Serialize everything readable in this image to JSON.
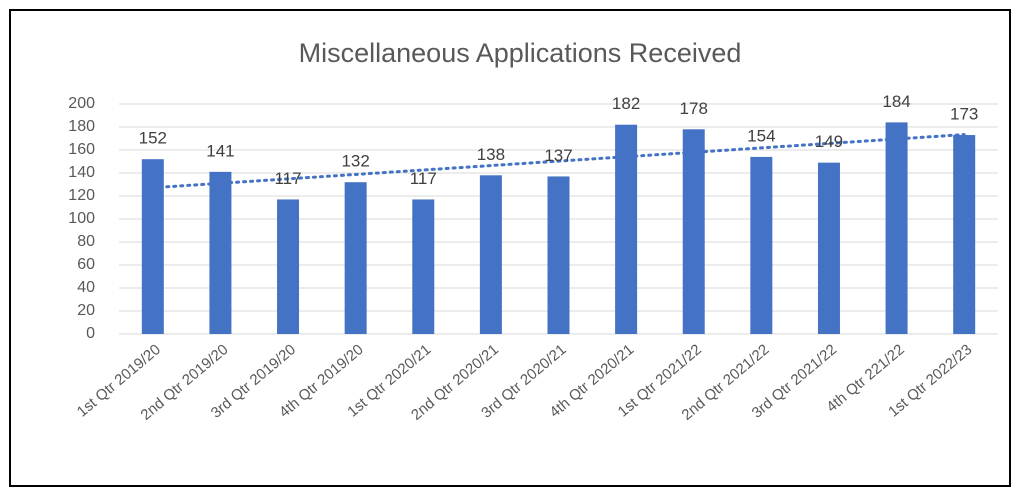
{
  "chart_data": {
    "type": "bar",
    "title": "Miscellaneous Applications Received",
    "categories": [
      "1st Qtr 2019/20",
      "2nd Qtr 2019/20",
      "3rd Qtr 2019/20",
      "4th Qtr 2019/20",
      "1st Qtr 2020/21",
      "2nd Qtr 2020/21",
      "3rd Qtr 2020/21",
      "4th Qtr 2020/21",
      "1st Qtr 2021/22",
      "2nd Qtr 2021/22",
      "3rd Qtr 2021/22",
      "4th Qtr 221/22",
      "1st Qtr 2022/23"
    ],
    "values": [
      152,
      141,
      117,
      132,
      117,
      138,
      137,
      182,
      178,
      154,
      149,
      184,
      173
    ],
    "color": "#4472c4",
    "ylim": [
      0,
      200
    ],
    "yticks": [
      0,
      20,
      40,
      60,
      80,
      100,
      120,
      140,
      160,
      180,
      200
    ],
    "grid": true,
    "trendline": {
      "type": "linear",
      "color": "#4472c4"
    }
  }
}
